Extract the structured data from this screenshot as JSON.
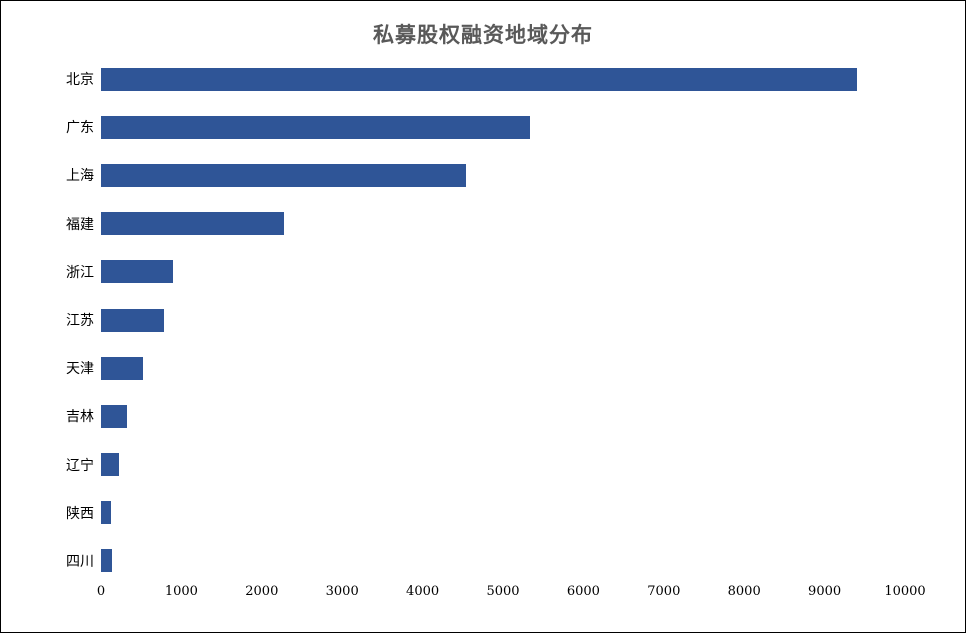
{
  "window": {
    "background": "#ffffff",
    "border_color": "#000000"
  },
  "chart_data": {
    "type": "bar",
    "orientation": "horizontal",
    "title": "私募股权融资地域分布",
    "categories": [
      "北京",
      "广东",
      "上海",
      "福建",
      "浙江",
      "江苏",
      "天津",
      "吉林",
      "辽宁",
      "陕西",
      "四川"
    ],
    "values": [
      9400,
      5330,
      4540,
      2270,
      900,
      780,
      520,
      320,
      220,
      125,
      135
    ],
    "xlabel": "",
    "ylabel": "",
    "xlim": [
      0,
      10000
    ],
    "x_ticks": [
      0,
      1000,
      2000,
      3000,
      4000,
      5000,
      6000,
      7000,
      8000,
      9000,
      10000
    ],
    "bar_color": "#2F5597",
    "title_color": "#595959",
    "text_color": "#000000",
    "grid": false,
    "legend": false
  }
}
